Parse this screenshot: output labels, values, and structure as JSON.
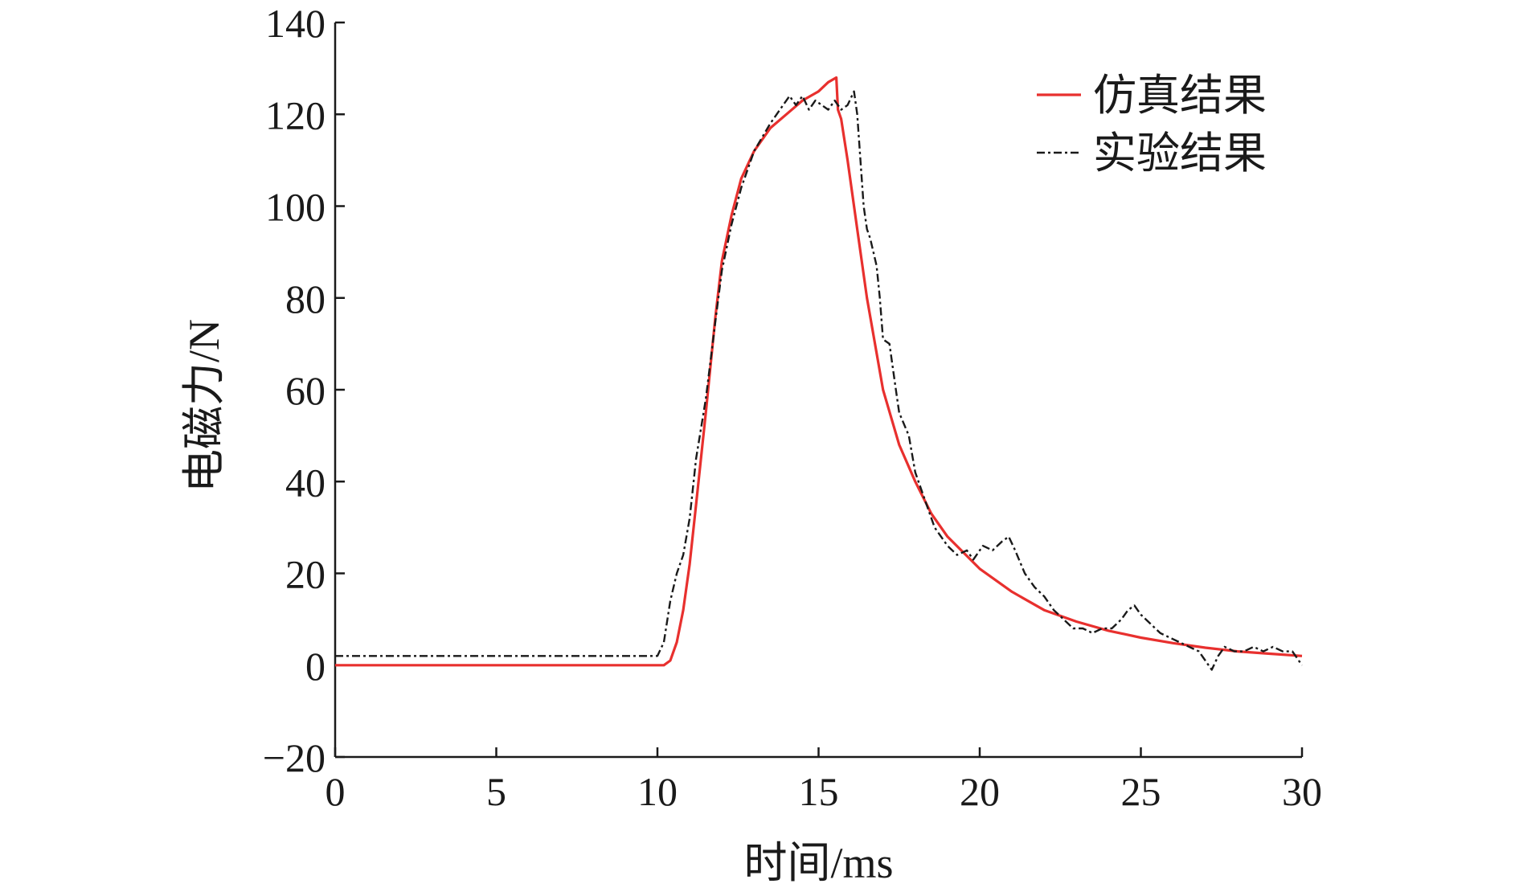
{
  "chart_data": {
    "type": "line",
    "title": "",
    "xlabel": "时间/ms",
    "ylabel": "电磁力/N",
    "xlim": [
      0,
      30
    ],
    "ylim": [
      -20,
      140
    ],
    "xticks": [
      0,
      5,
      10,
      15,
      20,
      25,
      30
    ],
    "yticks": [
      -20,
      0,
      20,
      40,
      60,
      80,
      100,
      120,
      140
    ],
    "ytick_labels": [
      "−20",
      "0",
      "20",
      "40",
      "60",
      "80",
      "100",
      "120",
      "140"
    ],
    "grid": false,
    "legend_position": "top-right",
    "series": [
      {
        "name": "仿真结果",
        "color": "#e8302e",
        "style": "solid",
        "x": [
          0,
          10.2,
          10.4,
          10.6,
          10.8,
          11.0,
          11.2,
          11.5,
          11.8,
          12.0,
          12.3,
          12.6,
          13.0,
          13.5,
          14.0,
          14.5,
          15.0,
          15.3,
          15.55,
          15.6,
          15.7,
          15.9,
          16.2,
          16.5,
          16.8,
          17.0,
          17.5,
          18.0,
          18.5,
          19.0,
          20.0,
          21.0,
          22.0,
          23.0,
          24.0,
          25.0,
          26.0,
          27.0,
          28.0,
          29.0,
          30.0
        ],
        "y": [
          0,
          0,
          1,
          5,
          12,
          22,
          35,
          55,
          76,
          88,
          98,
          106,
          112,
          117,
          120,
          123,
          125,
          127,
          128,
          121,
          119,
          110,
          95,
          80,
          68,
          60,
          48,
          40,
          33,
          28,
          21,
          16,
          12,
          9.5,
          7.5,
          6,
          4.8,
          3.8,
          3,
          2.5,
          2
        ]
      },
      {
        "name": "实验结果",
        "color": "#1a1a1a",
        "style": "dashdot",
        "x": [
          0,
          10.0,
          10.2,
          10.4,
          10.6,
          10.8,
          11.0,
          11.2,
          11.5,
          11.8,
          12.0,
          12.3,
          12.6,
          13.0,
          13.5,
          13.9,
          14.1,
          14.3,
          14.5,
          14.7,
          14.9,
          15.1,
          15.3,
          15.5,
          15.7,
          15.9,
          16.1,
          16.2,
          16.4,
          16.5,
          16.6,
          16.8,
          16.9,
          17.0,
          17.2,
          17.4,
          17.5,
          17.8,
          18.0,
          18.3,
          18.6,
          19.0,
          19.3,
          19.6,
          19.8,
          20.1,
          20.4,
          20.7,
          20.9,
          21.1,
          21.4,
          21.7,
          22.0,
          22.3,
          22.6,
          22.9,
          23.2,
          23.5,
          23.8,
          24.1,
          24.4,
          24.6,
          24.8,
          25.0,
          25.3,
          25.6,
          25.9,
          26.2,
          26.5,
          26.8,
          27.0,
          27.2,
          27.4,
          27.6,
          27.9,
          28.2,
          28.5,
          28.8,
          29.1,
          29.4,
          29.7,
          30.0
        ],
        "y": [
          2,
          2,
          5,
          14,
          20,
          24,
          32,
          45,
          58,
          75,
          86,
          96,
          104,
          112,
          118,
          122,
          124,
          122,
          124,
          121,
          123,
          122,
          121,
          123,
          121,
          122,
          125,
          120,
          100,
          95,
          93,
          87,
          80,
          71,
          70,
          60,
          55,
          50,
          42,
          36,
          30,
          26,
          24,
          25,
          23,
          26,
          25,
          27,
          28,
          25,
          20,
          17,
          15,
          12,
          10,
          8,
          8,
          7,
          8,
          8,
          10,
          12,
          13,
          11,
          9,
          7,
          6,
          5,
          4,
          3,
          1,
          -1,
          2,
          4,
          3,
          3,
          4,
          3,
          4,
          3,
          3,
          0
        ]
      }
    ]
  }
}
